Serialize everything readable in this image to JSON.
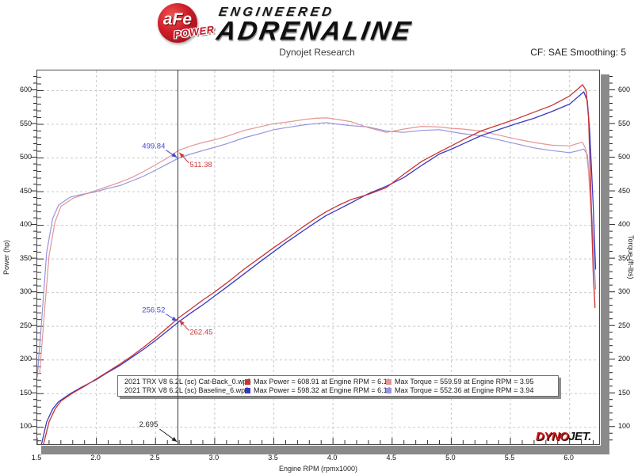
{
  "header": {
    "logo": {
      "ball_text": "aFe",
      "reg": "®",
      "power_text": "POWER",
      "line1": "ENGINEERED",
      "line2": "ADRENALINE"
    },
    "subtitle": "Dynojet Research",
    "cf_label": "CF: SAE Smoothing: 5"
  },
  "watermark": {
    "part1": "DYNO",
    "part2": "JET."
  },
  "legend": {
    "rows": [
      {
        "name": "2021 TRX V8 6.2L (sc) Cat-Back_0.wp8",
        "power_color": "#c93434",
        "power": "Max Power = 608.91 at Engine RPM = 6.11",
        "torque_color": "#e59595",
        "torque": "Max Torque = 559.59 at Engine RPM = 3.95"
      },
      {
        "name": "2021 TRX V8 6.2L (sc) Baseline_6.wp8",
        "power_color": "#3838c4",
        "power": "Max Power = 598.32 at Engine RPM = 6.12",
        "torque_color": "#9595dd",
        "torque": "Max Torque = 552.36 at Engine RPM = 3.94"
      }
    ]
  },
  "chart_data": {
    "type": "line",
    "title": "Dynojet Research",
    "xlabel": "Engine RPM (rpmx1000)",
    "ylabel_left": "Power (hp)",
    "ylabel_right": "Torque (ft-lbs)",
    "x_range": [
      1.5,
      6.25
    ],
    "y_range": [
      75,
      630
    ],
    "x_ticks": [
      1.5,
      2.0,
      2.5,
      3.0,
      3.5,
      4.0,
      4.5,
      5.0,
      5.5,
      6.0
    ],
    "x_minor_step": 0.1,
    "y_ticks": [
      100,
      150,
      200,
      250,
      300,
      350,
      400,
      450,
      500,
      550,
      600
    ],
    "y_minor_step": 10,
    "grid": true,
    "grid_color": "#c9c9c9",
    "cursor": {
      "rpm": 2.695,
      "rpm_label": "2.695",
      "readouts": [
        {
          "text": "499.84",
          "value": 499.84,
          "color": "#4848cc",
          "side": "above-left"
        },
        {
          "text": "511.38",
          "value": 511.38,
          "color": "#c83c3c",
          "side": "below-right"
        },
        {
          "text": "256.52",
          "value": 256.52,
          "color": "#4848cc",
          "side": "above-left"
        },
        {
          "text": "262.45",
          "value": 262.45,
          "color": "#c83c3c",
          "side": "below-right"
        }
      ]
    },
    "series": [
      {
        "name": "Baseline Torque",
        "unit": "ft-lbs",
        "color": "#9595dd",
        "width": 1.2,
        "max": {
          "value": 552.36,
          "rpm": 3.94
        },
        "points": [
          [
            1.5,
            175
          ],
          [
            1.54,
            265
          ],
          [
            1.58,
            360
          ],
          [
            1.63,
            410
          ],
          [
            1.68,
            430
          ],
          [
            1.78,
            442
          ],
          [
            1.88,
            446
          ],
          [
            2.0,
            450
          ],
          [
            2.1,
            455
          ],
          [
            2.2,
            459
          ],
          [
            2.3,
            466
          ],
          [
            2.4,
            473
          ],
          [
            2.5,
            482
          ],
          [
            2.6,
            491
          ],
          [
            2.695,
            499.8
          ],
          [
            2.8,
            506
          ],
          [
            2.9,
            511
          ],
          [
            3.0,
            516
          ],
          [
            3.1,
            521
          ],
          [
            3.25,
            530
          ],
          [
            3.4,
            537
          ],
          [
            3.5,
            542
          ],
          [
            3.6,
            545
          ],
          [
            3.75,
            549
          ],
          [
            3.85,
            551
          ],
          [
            3.94,
            552.4
          ],
          [
            4.05,
            550
          ],
          [
            4.15,
            548
          ],
          [
            4.3,
            546
          ],
          [
            4.45,
            540
          ],
          [
            4.6,
            538
          ],
          [
            4.75,
            541
          ],
          [
            4.9,
            542
          ],
          [
            5.0,
            539
          ],
          [
            5.1,
            536
          ],
          [
            5.25,
            533
          ],
          [
            5.4,
            527
          ],
          [
            5.55,
            521
          ],
          [
            5.7,
            515
          ],
          [
            5.85,
            511
          ],
          [
            6.0,
            508
          ],
          [
            6.08,
            511
          ],
          [
            6.12,
            513.4
          ],
          [
            6.15,
            505
          ],
          [
            6.17,
            465
          ],
          [
            6.2,
            380
          ],
          [
            6.22,
            305
          ]
        ]
      },
      {
        "name": "Cat-Back Torque",
        "unit": "ft-lbs",
        "color": "#e59595",
        "width": 1.2,
        "max": {
          "value": 559.59,
          "rpm": 3.95
        },
        "points": [
          [
            1.52,
            180
          ],
          [
            1.56,
            270
          ],
          [
            1.6,
            355
          ],
          [
            1.65,
            405
          ],
          [
            1.7,
            428
          ],
          [
            1.8,
            440
          ],
          [
            1.9,
            446
          ],
          [
            2.0,
            452
          ],
          [
            2.1,
            458
          ],
          [
            2.2,
            464
          ],
          [
            2.3,
            471
          ],
          [
            2.4,
            480
          ],
          [
            2.5,
            490
          ],
          [
            2.6,
            500
          ],
          [
            2.695,
            511.4
          ],
          [
            2.8,
            518
          ],
          [
            2.9,
            523
          ],
          [
            3.0,
            527
          ],
          [
            3.1,
            532
          ],
          [
            3.25,
            541
          ],
          [
            3.4,
            547
          ],
          [
            3.5,
            551
          ],
          [
            3.6,
            553
          ],
          [
            3.75,
            557
          ],
          [
            3.85,
            559
          ],
          [
            3.95,
            559.6
          ],
          [
            4.05,
            557
          ],
          [
            4.15,
            554
          ],
          [
            4.3,
            545
          ],
          [
            4.45,
            538
          ],
          [
            4.6,
            543
          ],
          [
            4.75,
            547
          ],
          [
            4.9,
            546
          ],
          [
            5.0,
            544
          ],
          [
            5.1,
            543
          ],
          [
            5.25,
            540
          ],
          [
            5.4,
            534
          ],
          [
            5.55,
            528
          ],
          [
            5.7,
            523
          ],
          [
            5.85,
            519
          ],
          [
            6.0,
            518
          ],
          [
            6.08,
            522
          ],
          [
            6.11,
            523.4
          ],
          [
            6.14,
            512
          ],
          [
            6.16,
            480
          ],
          [
            6.18,
            420
          ],
          [
            6.2,
            340
          ],
          [
            6.21,
            298
          ]
        ]
      },
      {
        "name": "Baseline Power",
        "unit": "hp",
        "color": "#3838c4",
        "width": 1.3,
        "max": {
          "value": 598.32,
          "rpm": 6.12
        },
        "points": [
          [
            1.5,
            50
          ],
          [
            1.54,
            78
          ],
          [
            1.58,
            108
          ],
          [
            1.63,
            127
          ],
          [
            1.68,
            138
          ],
          [
            1.78,
            150
          ],
          [
            1.88,
            160
          ],
          [
            2.0,
            171
          ],
          [
            2.1,
            182
          ],
          [
            2.2,
            192
          ],
          [
            2.3,
            204
          ],
          [
            2.4,
            216
          ],
          [
            2.5,
            229
          ],
          [
            2.6,
            243
          ],
          [
            2.695,
            256.5
          ],
          [
            2.8,
            270
          ],
          [
            2.9,
            282
          ],
          [
            3.0,
            295
          ],
          [
            3.1,
            308
          ],
          [
            3.25,
            328
          ],
          [
            3.4,
            348
          ],
          [
            3.5,
            361
          ],
          [
            3.6,
            374
          ],
          [
            3.75,
            392
          ],
          [
            3.85,
            404
          ],
          [
            3.94,
            414.4
          ],
          [
            4.05,
            424
          ],
          [
            4.15,
            433
          ],
          [
            4.3,
            447
          ],
          [
            4.45,
            458
          ],
          [
            4.6,
            471
          ],
          [
            4.75,
            489
          ],
          [
            4.9,
            506
          ],
          [
            5.0,
            513
          ],
          [
            5.1,
            521
          ],
          [
            5.25,
            533
          ],
          [
            5.4,
            542
          ],
          [
            5.55,
            551
          ],
          [
            5.7,
            559
          ],
          [
            5.85,
            569
          ],
          [
            6.0,
            580
          ],
          [
            6.08,
            592
          ],
          [
            6.12,
            598.3
          ],
          [
            6.15,
            585
          ],
          [
            6.17,
            540
          ],
          [
            6.2,
            430
          ],
          [
            6.22,
            335
          ]
        ]
      },
      {
        "name": "Cat-Back Power",
        "unit": "hp",
        "color": "#c93434",
        "width": 1.3,
        "max": {
          "value": 608.91,
          "rpm": 6.11
        },
        "points": [
          [
            1.52,
            52
          ],
          [
            1.56,
            80
          ],
          [
            1.6,
            108
          ],
          [
            1.65,
            127
          ],
          [
            1.7,
            139
          ],
          [
            1.8,
            151
          ],
          [
            1.9,
            161
          ],
          [
            2.0,
            172
          ],
          [
            2.1,
            183
          ],
          [
            2.2,
            194
          ],
          [
            2.3,
            206
          ],
          [
            2.4,
            219
          ],
          [
            2.5,
            233
          ],
          [
            2.6,
            248
          ],
          [
            2.695,
            262.5
          ],
          [
            2.8,
            276
          ],
          [
            2.9,
            289
          ],
          [
            3.0,
            301
          ],
          [
            3.1,
            314
          ],
          [
            3.25,
            335
          ],
          [
            3.4,
            354
          ],
          [
            3.5,
            367
          ],
          [
            3.6,
            379
          ],
          [
            3.75,
            398
          ],
          [
            3.85,
            410
          ],
          [
            3.95,
            420.9
          ],
          [
            4.05,
            430
          ],
          [
            4.15,
            438
          ],
          [
            4.3,
            446
          ],
          [
            4.45,
            456
          ],
          [
            4.6,
            476
          ],
          [
            4.75,
            495
          ],
          [
            4.9,
            509
          ],
          [
            5.0,
            518
          ],
          [
            5.1,
            527
          ],
          [
            5.25,
            540
          ],
          [
            5.4,
            549
          ],
          [
            5.55,
            558
          ],
          [
            5.7,
            568
          ],
          [
            5.85,
            578
          ],
          [
            6.0,
            592
          ],
          [
            6.08,
            604
          ],
          [
            6.11,
            608.9
          ],
          [
            6.14,
            600
          ],
          [
            6.16,
            560
          ],
          [
            6.18,
            450
          ],
          [
            6.2,
            330
          ],
          [
            6.215,
            278
          ]
        ]
      }
    ]
  }
}
